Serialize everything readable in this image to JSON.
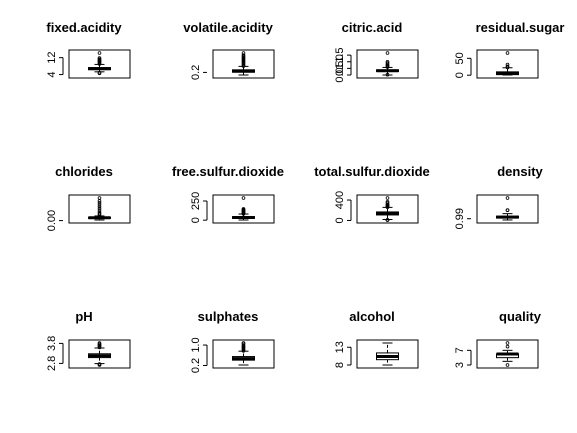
{
  "chart_data": [
    {
      "type": "boxplot",
      "title": "fixed.acidity",
      "ylim": [
        3.8,
        14.2
      ],
      "ticks": [
        4,
        12
      ],
      "tick_labels": [
        "4",
        "12"
      ],
      "box": {
        "min": 5.3,
        "q1": 6.3,
        "median": 6.8,
        "q3": 7.3,
        "max": 8.8
      },
      "outliers": [
        9.0,
        9.4,
        9.8,
        10.2,
        10.5,
        10.8,
        11.2,
        11.8,
        4.6,
        4.9,
        14.2
      ]
    },
    {
      "type": "boxplot",
      "title": "volatile.acidity",
      "ylim": [
        0.08,
        1.1
      ],
      "ticks": [
        0.2
      ],
      "tick_labels": [
        "0.2"
      ],
      "box": {
        "min": 0.08,
        "q1": 0.21,
        "median": 0.26,
        "q3": 0.32,
        "max": 0.48
      },
      "outliers": [
        0.5,
        0.55,
        0.6,
        0.65,
        0.7,
        0.75,
        0.8,
        0.85,
        0.9,
        0.95,
        1.0,
        1.1
      ]
    },
    {
      "type": "boxplot",
      "title": "citric.acid",
      "ylim": [
        0,
        1.66
      ],
      "ticks": [
        0.0,
        0.5,
        1.0,
        1.5
      ],
      "tick_labels": [
        "0.0",
        "0.5",
        "1.0",
        "1.5"
      ],
      "box": {
        "min": 0.0,
        "q1": 0.27,
        "median": 0.32,
        "q3": 0.39,
        "max": 0.57
      },
      "outliers": [
        0.6,
        0.66,
        0.72,
        0.8,
        0.9,
        1.0,
        1.66,
        0.02
      ]
    },
    {
      "type": "boxplot",
      "title": "residual.sugar",
      "ylim": [
        0.6,
        65.8
      ],
      "ticks": [
        0,
        50
      ],
      "tick_labels": [
        "0",
        "50"
      ],
      "box": {
        "min": 0.6,
        "q1": 1.7,
        "median": 5.2,
        "q3": 9.9,
        "max": 22.0
      },
      "outliers": [
        23.0,
        26.0,
        31.6,
        65.8
      ]
    },
    {
      "type": "boxplot",
      "title": "chlorides",
      "ylim": [
        0.009,
        0.346
      ],
      "ticks": [
        0.0
      ],
      "tick_labels": [
        "0.00"
      ],
      "box": {
        "min": 0.009,
        "q1": 0.036,
        "median": 0.043,
        "q3": 0.05,
        "max": 0.071
      },
      "outliers": [
        0.08,
        0.1,
        0.12,
        0.15,
        0.18,
        0.21,
        0.24,
        0.27,
        0.3,
        0.346
      ]
    },
    {
      "type": "boxplot",
      "title": "free.sulfur.dioxide",
      "ylim": [
        2,
        289
      ],
      "ticks": [
        0,
        250
      ],
      "tick_labels": [
        "0",
        "250"
      ],
      "box": {
        "min": 2,
        "q1": 23,
        "median": 34,
        "q3": 46,
        "max": 80
      },
      "outliers": [
        82,
        88,
        96,
        105,
        112,
        118,
        128,
        138,
        146,
        289
      ]
    },
    {
      "type": "boxplot",
      "title": "total.sulfur.dioxide",
      "ylim": [
        9,
        440
      ],
      "ticks": [
        0,
        400
      ],
      "tick_labels": [
        "0",
        "400"
      ],
      "box": {
        "min": 19,
        "q1": 108,
        "median": 134,
        "q3": 167,
        "max": 256
      },
      "outliers": [
        260,
        272,
        282,
        294,
        307,
        313,
        344,
        366,
        440,
        9,
        10,
        11
      ]
    },
    {
      "type": "boxplot",
      "title": "density",
      "ylim": [
        0.987,
        1.039
      ],
      "ticks": [
        0.99
      ],
      "tick_labels": [
        "0.99"
      ],
      "box": {
        "min": 0.9871,
        "q1": 0.9917,
        "median": 0.9937,
        "q3": 0.9961,
        "max": 1.002
      },
      "outliers": [
        1.0103,
        1.0103,
        1.039
      ]
    },
    {
      "type": "boxplot",
      "title": "pH",
      "ylim": [
        2.72,
        3.82
      ],
      "ticks": [
        2.8,
        3.8
      ],
      "tick_labels": [
        "2.8",
        "3.8"
      ],
      "box": {
        "min": 2.79,
        "q1": 3.09,
        "median": 3.18,
        "q3": 3.28,
        "max": 3.57
      },
      "outliers": [
        3.6,
        3.65,
        3.69,
        3.72,
        3.77,
        3.82,
        2.72,
        2.74,
        2.77
      ]
    },
    {
      "type": "boxplot",
      "title": "sulphates",
      "ylim": [
        0.22,
        1.08
      ],
      "ticks": [
        0.2,
        1.0
      ],
      "tick_labels": [
        "0.2",
        "1.0"
      ],
      "box": {
        "min": 0.22,
        "q1": 0.41,
        "median": 0.47,
        "q3": 0.55,
        "max": 0.76
      },
      "outliers": [
        0.77,
        0.8,
        0.84,
        0.88,
        0.92,
        0.96,
        1.0,
        1.06,
        1.08
      ]
    },
    {
      "type": "boxplot",
      "title": "alcohol",
      "ylim": [
        8.0,
        14.2
      ],
      "ticks": [
        8,
        13
      ],
      "tick_labels": [
        "8",
        "13"
      ],
      "box": {
        "min": 8.0,
        "q1": 9.5,
        "median": 10.4,
        "q3": 11.4,
        "max": 14.2
      },
      "outliers": []
    },
    {
      "type": "boxplot",
      "title": "quality",
      "ylim": [
        3,
        9
      ],
      "ticks": [
        3,
        7
      ],
      "tick_labels": [
        "3",
        "7"
      ],
      "box": {
        "min": 4,
        "q1": 5,
        "median": 6,
        "q3": 6,
        "max": 7
      },
      "outliers": [
        3,
        8,
        9
      ]
    }
  ]
}
